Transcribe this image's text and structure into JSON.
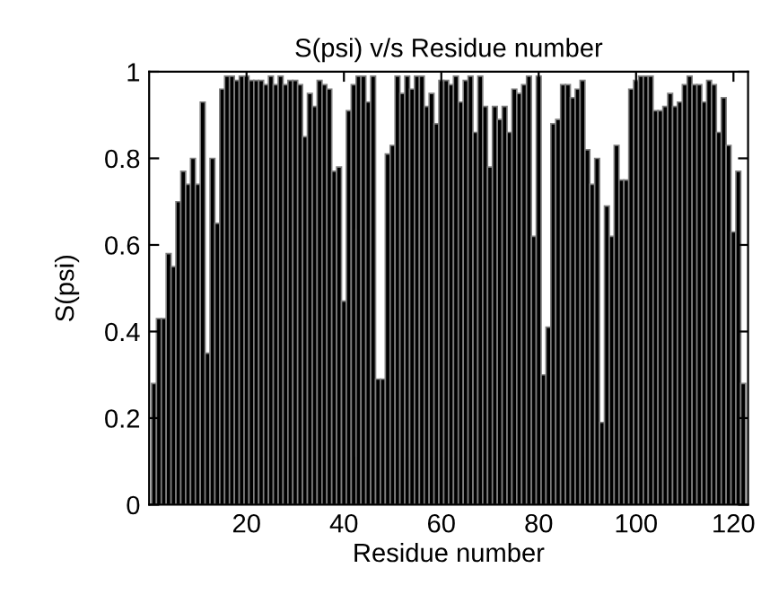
{
  "chart_data": {
    "type": "bar",
    "title": "S(psi) v/s Residue number",
    "xlabel": "Residue number",
    "ylabel": "S(psi)",
    "x": [
      1,
      2,
      3,
      4,
      5,
      6,
      7,
      8,
      9,
      10,
      11,
      12,
      13,
      14,
      15,
      16,
      17,
      18,
      19,
      20,
      21,
      22,
      23,
      24,
      25,
      26,
      27,
      28,
      29,
      30,
      31,
      32,
      33,
      34,
      35,
      36,
      37,
      38,
      39,
      40,
      41,
      42,
      43,
      44,
      45,
      46,
      47,
      48,
      49,
      50,
      51,
      52,
      53,
      54,
      55,
      56,
      57,
      58,
      59,
      60,
      61,
      62,
      63,
      64,
      65,
      66,
      67,
      68,
      69,
      70,
      71,
      72,
      73,
      74,
      75,
      76,
      77,
      78,
      79,
      80,
      81,
      82,
      83,
      84,
      85,
      86,
      87,
      88,
      89,
      90,
      91,
      92,
      93,
      94,
      95,
      96,
      97,
      98,
      99,
      100,
      101,
      102,
      103,
      104,
      105,
      106,
      107,
      108,
      109,
      110,
      111,
      112,
      113,
      114,
      115,
      116,
      117,
      118,
      119,
      120,
      121,
      122
    ],
    "values": [
      0.28,
      0.43,
      0.43,
      0.58,
      0.55,
      0.7,
      0.77,
      0.74,
      0.8,
      0.74,
      0.93,
      0.35,
      0.8,
      0.65,
      0.96,
      0.99,
      0.99,
      0.98,
      0.99,
      0.99,
      0.98,
      0.98,
      0.98,
      0.97,
      0.99,
      0.97,
      0.99,
      0.97,
      0.98,
      0.98,
      0.97,
      0.85,
      0.95,
      0.92,
      0.98,
      0.97,
      0.96,
      0.77,
      0.78,
      0.47,
      0.91,
      0.97,
      0.99,
      0.99,
      0.93,
      0.99,
      0.29,
      0.29,
      0.81,
      0.83,
      0.99,
      0.95,
      0.99,
      0.96,
      0.99,
      0.99,
      0.92,
      0.95,
      0.88,
      0.98,
      0.98,
      0.97,
      0.99,
      0.93,
      0.98,
      0.99,
      0.86,
      0.99,
      0.92,
      0.78,
      0.92,
      0.89,
      0.92,
      0.86,
      0.96,
      0.95,
      0.97,
      0.99,
      0.62,
      0.99,
      0.3,
      0.41,
      0.88,
      0.89,
      0.97,
      0.97,
      0.94,
      0.96,
      0.98,
      0.82,
      0.74,
      0.8,
      0.19,
      0.69,
      0.62,
      0.83,
      0.75,
      0.75,
      0.96,
      0.98,
      0.99,
      0.99,
      0.99,
      0.91,
      0.91,
      0.92,
      0.95,
      0.92,
      0.93,
      0.97,
      0.99,
      0.97,
      0.97,
      0.93,
      0.98,
      0.97,
      0.86,
      0.94,
      0.83,
      0.63,
      0.77,
      0.28
    ],
    "color": "#000000",
    "xlim": [
      0,
      123
    ],
    "xticks": [
      20,
      40,
      60,
      80,
      100,
      120
    ],
    "ylim": [
      0,
      1
    ],
    "yticks": [
      0,
      0.2,
      0.4,
      0.6,
      0.8,
      1
    ],
    "grid": false,
    "legend": false
  }
}
